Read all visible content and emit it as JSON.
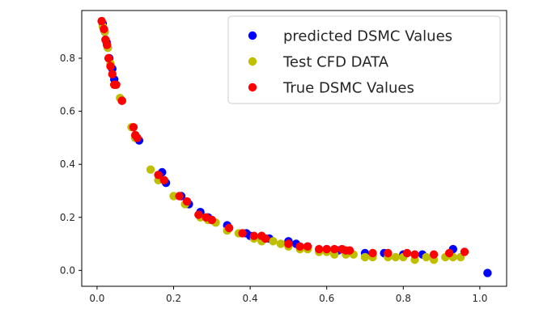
{
  "chart_data": {
    "type": "scatter",
    "title": "",
    "xlabel": "",
    "ylabel": "",
    "xlim": [
      -0.04,
      1.07
    ],
    "ylim": [
      -0.06,
      0.98
    ],
    "xticks": [
      0.0,
      0.2,
      0.4,
      0.6,
      0.8,
      1.0
    ],
    "xtick_labels": [
      "0.0",
      "0.2",
      "0.4",
      "0.6",
      "0.8",
      "1.0"
    ],
    "yticks": [
      0.0,
      0.2,
      0.4,
      0.6,
      0.8
    ],
    "ytick_labels": [
      "0.0",
      "0.2",
      "0.4",
      "0.6",
      "0.8"
    ],
    "grid": false,
    "legend_position": "top-right",
    "series": [
      {
        "name": "predicted DSMC Values",
        "color": "#0000ff",
        "x": [
          0.015,
          0.02,
          0.025,
          0.028,
          0.032,
          0.04,
          0.045,
          0.065,
          0.1,
          0.11,
          0.17,
          0.18,
          0.22,
          0.24,
          0.27,
          0.29,
          0.3,
          0.34,
          0.39,
          0.4,
          0.43,
          0.45,
          0.5,
          0.52,
          0.55,
          0.6,
          0.63,
          0.66,
          0.7,
          0.75,
          0.8,
          0.85,
          0.93,
          1.02
        ],
        "y": [
          0.93,
          0.9,
          0.86,
          0.84,
          0.8,
          0.76,
          0.72,
          0.64,
          0.5,
          0.49,
          0.37,
          0.33,
          0.28,
          0.25,
          0.22,
          0.2,
          0.19,
          0.17,
          0.14,
          0.13,
          0.12,
          0.12,
          0.11,
          0.1,
          0.09,
          0.08,
          0.075,
          0.07,
          0.065,
          0.065,
          0.06,
          0.06,
          0.08,
          -0.01
        ]
      },
      {
        "name": "Test CFD DATA",
        "color": "#bfbf00",
        "x": [
          0.015,
          0.02,
          0.028,
          0.035,
          0.045,
          0.06,
          0.09,
          0.1,
          0.14,
          0.16,
          0.2,
          0.23,
          0.27,
          0.29,
          0.31,
          0.34,
          0.37,
          0.41,
          0.43,
          0.46,
          0.48,
          0.5,
          0.53,
          0.55,
          0.58,
          0.6,
          0.62,
          0.65,
          0.67,
          0.7,
          0.72,
          0.76,
          0.78,
          0.8,
          0.83,
          0.86,
          0.88,
          0.91,
          0.93,
          0.95
        ],
        "y": [
          0.92,
          0.9,
          0.84,
          0.78,
          0.7,
          0.65,
          0.54,
          0.5,
          0.38,
          0.34,
          0.28,
          0.25,
          0.2,
          0.19,
          0.18,
          0.15,
          0.14,
          0.12,
          0.11,
          0.11,
          0.1,
          0.09,
          0.08,
          0.08,
          0.07,
          0.07,
          0.06,
          0.06,
          0.06,
          0.05,
          0.05,
          0.05,
          0.05,
          0.05,
          0.04,
          0.05,
          0.04,
          0.05,
          0.05,
          0.05
        ]
      },
      {
        "name": "True DSMC Values",
        "color": "#ff0000",
        "x": [
          0.012,
          0.018,
          0.022,
          0.026,
          0.03,
          0.035,
          0.04,
          0.045,
          0.05,
          0.065,
          0.095,
          0.1,
          0.105,
          0.16,
          0.175,
          0.215,
          0.235,
          0.265,
          0.285,
          0.3,
          0.345,
          0.38,
          0.41,
          0.43,
          0.44,
          0.5,
          0.53,
          0.55,
          0.58,
          0.6,
          0.62,
          0.64,
          0.65,
          0.66,
          0.72,
          0.76,
          0.81,
          0.83,
          0.88,
          0.92,
          0.96
        ],
        "y": [
          0.94,
          0.91,
          0.87,
          0.85,
          0.8,
          0.77,
          0.74,
          0.7,
          0.7,
          0.64,
          0.54,
          0.51,
          0.5,
          0.36,
          0.34,
          0.28,
          0.26,
          0.21,
          0.2,
          0.19,
          0.16,
          0.14,
          0.13,
          0.13,
          0.12,
          0.1,
          0.09,
          0.09,
          0.08,
          0.08,
          0.08,
          0.08,
          0.075,
          0.075,
          0.065,
          0.065,
          0.065,
          0.06,
          0.06,
          0.065,
          0.07
        ]
      }
    ]
  }
}
